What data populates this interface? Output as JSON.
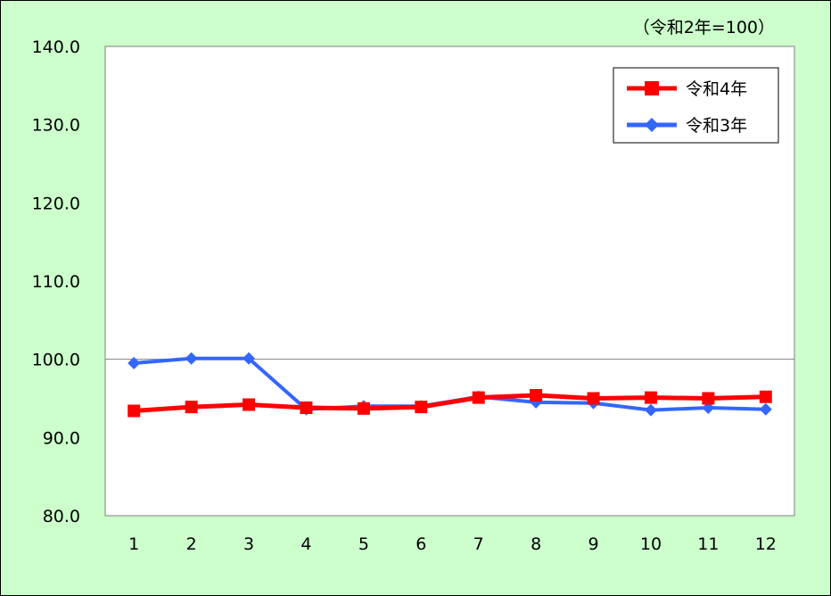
{
  "chart_data": {
    "type": "line",
    "unit_note": "（令和2年=100）",
    "categories": [
      "1",
      "2",
      "3",
      "4",
      "5",
      "6",
      "7",
      "8",
      "9",
      "10",
      "11",
      "12"
    ],
    "ylim": [
      80,
      140
    ],
    "yticks": [
      "80.0",
      "90.0",
      "100.0",
      "110.0",
      "120.0",
      "130.0",
      "140.0"
    ],
    "reference_line": 100,
    "legend_position": "top-right",
    "grid": false,
    "series": [
      {
        "name": "令和4年",
        "color": "#ff0000",
        "marker": "square",
        "values": [
          93.4,
          93.9,
          94.2,
          93.8,
          93.7,
          93.9,
          95.1,
          95.4,
          95.0,
          95.1,
          95.0,
          95.2
        ]
      },
      {
        "name": "令和3年",
        "color": "#3366ff",
        "marker": "diamond",
        "values": [
          99.5,
          100.1,
          100.1,
          93.6,
          94.0,
          94.0,
          95.2,
          94.5,
          94.4,
          93.5,
          93.8,
          93.6
        ]
      }
    ]
  }
}
